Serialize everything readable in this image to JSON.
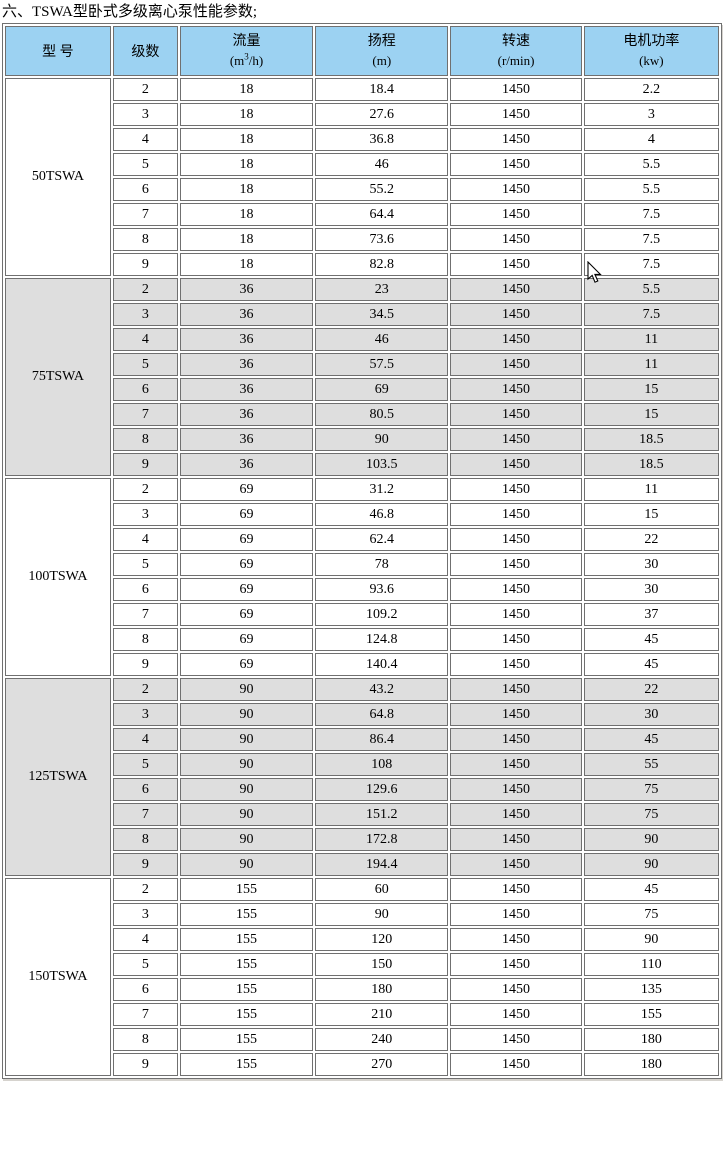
{
  "page": {
    "title": "六、TSWA型卧式多级离心泵性能参数;"
  },
  "colors": {
    "header_bg": "#9CD2F2",
    "shade_bg": "#DEDEDE",
    "row_bg": "#FFFFFF",
    "border": "#707070"
  },
  "table": {
    "header": {
      "model": "型 号",
      "stages": "级数",
      "flow": "流量",
      "flow_unit_prefix": "(m",
      "flow_unit_sup": "3",
      "flow_unit_suffix": "/h)",
      "head": "扬程",
      "head_unit": "(m)",
      "speed": "转速",
      "speed_unit": "(r/min)",
      "power": "电机功率",
      "power_unit": "(kw)"
    },
    "sections": [
      {
        "model": "50TSWA",
        "shade": false,
        "rows": [
          [
            "2",
            "18",
            "18.4",
            "1450",
            "2.2"
          ],
          [
            "3",
            "18",
            "27.6",
            "1450",
            "3"
          ],
          [
            "4",
            "18",
            "36.8",
            "1450",
            "4"
          ],
          [
            "5",
            "18",
            "46",
            "1450",
            "5.5"
          ],
          [
            "6",
            "18",
            "55.2",
            "1450",
            "5.5"
          ],
          [
            "7",
            "18",
            "64.4",
            "1450",
            "7.5"
          ],
          [
            "8",
            "18",
            "73.6",
            "1450",
            "7.5"
          ],
          [
            "9",
            "18",
            "82.8",
            "1450",
            "7.5"
          ]
        ]
      },
      {
        "model": "75TSWA",
        "shade": true,
        "rows": [
          [
            "2",
            "36",
            "23",
            "1450",
            "5.5"
          ],
          [
            "3",
            "36",
            "34.5",
            "1450",
            "7.5"
          ],
          [
            "4",
            "36",
            "46",
            "1450",
            "11"
          ],
          [
            "5",
            "36",
            "57.5",
            "1450",
            "11"
          ],
          [
            "6",
            "36",
            "69",
            "1450",
            "15"
          ],
          [
            "7",
            "36",
            "80.5",
            "1450",
            "15"
          ],
          [
            "8",
            "36",
            "90",
            "1450",
            "18.5"
          ],
          [
            "9",
            "36",
            "103.5",
            "1450",
            "18.5"
          ]
        ]
      },
      {
        "model": "100TSWA",
        "shade": false,
        "rows": [
          [
            "2",
            "69",
            "31.2",
            "1450",
            "11"
          ],
          [
            "3",
            "69",
            "46.8",
            "1450",
            "15"
          ],
          [
            "4",
            "69",
            "62.4",
            "1450",
            "22"
          ],
          [
            "5",
            "69",
            "78",
            "1450",
            "30"
          ],
          [
            "6",
            "69",
            "93.6",
            "1450",
            "30"
          ],
          [
            "7",
            "69",
            "109.2",
            "1450",
            "37"
          ],
          [
            "8",
            "69",
            "124.8",
            "1450",
            "45"
          ],
          [
            "9",
            "69",
            "140.4",
            "1450",
            "45"
          ]
        ]
      },
      {
        "model": "125TSWA",
        "shade": true,
        "rows": [
          [
            "2",
            "90",
            "43.2",
            "1450",
            "22"
          ],
          [
            "3",
            "90",
            "64.8",
            "1450",
            "30"
          ],
          [
            "4",
            "90",
            "86.4",
            "1450",
            "45"
          ],
          [
            "5",
            "90",
            "108",
            "1450",
            "55"
          ],
          [
            "6",
            "90",
            "129.6",
            "1450",
            "75"
          ],
          [
            "7",
            "90",
            "151.2",
            "1450",
            "75"
          ],
          [
            "8",
            "90",
            "172.8",
            "1450",
            "90"
          ],
          [
            "9",
            "90",
            "194.4",
            "1450",
            "90"
          ]
        ]
      },
      {
        "model": "150TSWA",
        "shade": false,
        "rows": [
          [
            "2",
            "155",
            "60",
            "1450",
            "45"
          ],
          [
            "3",
            "155",
            "90",
            "1450",
            "75"
          ],
          [
            "4",
            "155",
            "120",
            "1450",
            "90"
          ],
          [
            "5",
            "155",
            "150",
            "1450",
            "110"
          ],
          [
            "6",
            "155",
            "180",
            "1450",
            "135"
          ],
          [
            "7",
            "155",
            "210",
            "1450",
            "155"
          ],
          [
            "8",
            "155",
            "240",
            "1450",
            "180"
          ],
          [
            "9",
            "155",
            "270",
            "1450",
            "180"
          ]
        ]
      }
    ]
  }
}
